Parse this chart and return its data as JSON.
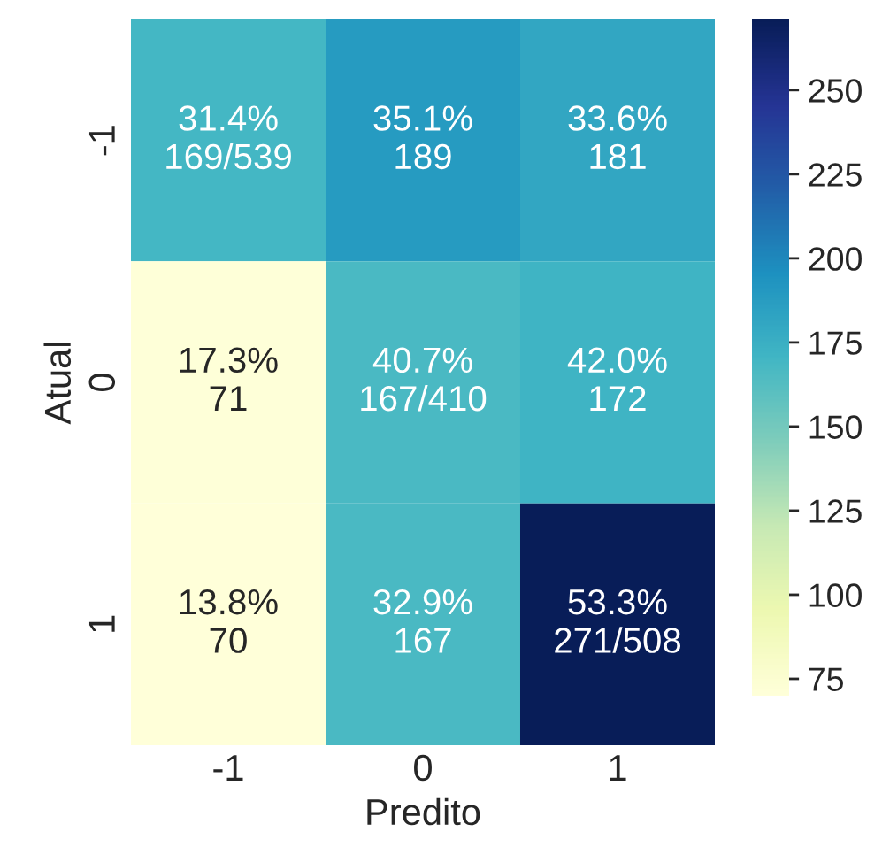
{
  "chart_data": {
    "type": "heatmap",
    "xlabel": "Predito",
    "ylabel": "Atual",
    "categories": [
      "-1",
      "0",
      "1"
    ],
    "y_categories": [
      "-1",
      "0",
      "1"
    ],
    "cells": [
      [
        169,
        189,
        181
      ],
      [
        71,
        167,
        172
      ],
      [
        70,
        167,
        271
      ]
    ],
    "cell_labels": [
      [
        "31.4%\n169/539",
        "35.1%\n189",
        "33.6%\n181"
      ],
      [
        "17.3%\n71",
        "40.7%\n167/410",
        "42.0%\n172"
      ],
      [
        "13.8%\n70",
        "32.9%\n167",
        "53.3%\n271/508"
      ]
    ],
    "clim": [
      70,
      271
    ],
    "cticks": [
      75,
      100,
      125,
      150,
      175,
      200,
      225,
      250
    ]
  }
}
